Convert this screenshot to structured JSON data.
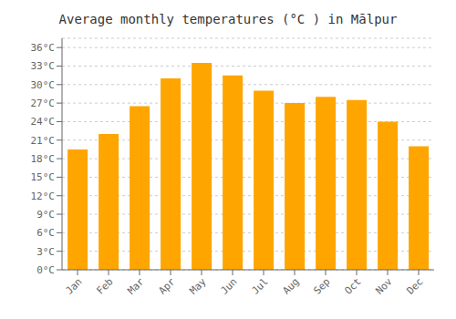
{
  "chart_data": {
    "type": "bar",
    "title": "Average monthly temperatures (°C ) in Mālpur",
    "categories": [
      "Jan",
      "Feb",
      "Mar",
      "Apr",
      "May",
      "Jun",
      "Jul",
      "Aug",
      "Sep",
      "Oct",
      "Nov",
      "Dec"
    ],
    "values": [
      19.5,
      22.0,
      26.5,
      31.0,
      33.5,
      31.5,
      29.0,
      27.0,
      28.0,
      27.5,
      24.0,
      20.0
    ],
    "color": "#FFA500",
    "ylim": [
      0,
      37.5
    ],
    "yticks": [
      {
        "value": 0,
        "label": "0°C"
      },
      {
        "value": 3,
        "label": "3°C"
      },
      {
        "value": 6,
        "label": "6°C"
      },
      {
        "value": 9,
        "label": "9°C"
      },
      {
        "value": 12,
        "label": "12°C"
      },
      {
        "value": 15,
        "label": "15°C"
      },
      {
        "value": 18,
        "label": "18°C"
      },
      {
        "value": 21,
        "label": "21°C"
      },
      {
        "value": 24,
        "label": "24°C"
      },
      {
        "value": 27,
        "label": "27°C"
      },
      {
        "value": 30,
        "label": "30°C"
      },
      {
        "value": 33,
        "label": "33°C"
      },
      {
        "value": 36,
        "label": "36°C"
      }
    ],
    "grid": true
  }
}
